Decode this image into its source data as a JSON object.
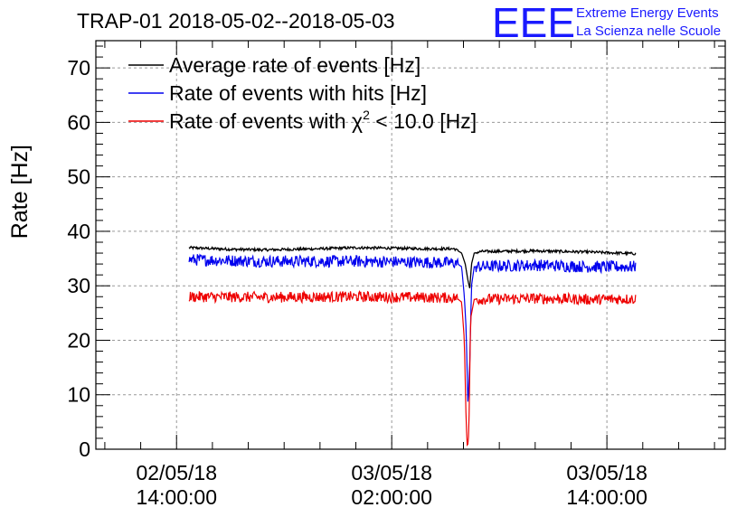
{
  "chart_data": {
    "type": "line",
    "title": "TRAP-01 2018-05-02--2018-05-03",
    "ylabel": "Rate [Hz]",
    "xlabel": "",
    "grid": true,
    "legend_position": "top-left",
    "logo": {
      "text": "EEE",
      "line1": "Extreme Energy Events",
      "line2": "La Scienza nelle Scuole",
      "color": "#1a1aff"
    },
    "ylim": [
      0,
      75
    ],
    "yticks": [
      0,
      10,
      20,
      30,
      40,
      50,
      60,
      70
    ],
    "xlim_hours_from_start": [
      -4.5,
      30.6
    ],
    "xticks": [
      {
        "hours": 0,
        "line1": "02/05/18",
        "line2": "14:00:00"
      },
      {
        "hours": 12,
        "line1": "03/05/18",
        "line2": "02:00:00"
      },
      {
        "hours": 24,
        "line1": "03/05/18",
        "line2": "14:00:00"
      }
    ],
    "series": [
      {
        "name": "Average rate of events [Hz]",
        "color": "#000000",
        "x_start": 0.7,
        "x_end": 25.6,
        "base": 36.7,
        "noise": 0.25,
        "points": [
          [
            0.7,
            37.0
          ],
          [
            3,
            36.7
          ],
          [
            5,
            36.6
          ],
          [
            8,
            36.8
          ],
          [
            10,
            37.0
          ],
          [
            12,
            36.9
          ],
          [
            14,
            36.8
          ],
          [
            15.5,
            36.8
          ],
          [
            15.9,
            36.0
          ],
          [
            16.1,
            34.0
          ],
          [
            16.25,
            31.0
          ],
          [
            16.35,
            29.5
          ],
          [
            16.45,
            34.0
          ],
          [
            16.6,
            36.0
          ],
          [
            17,
            36.3
          ],
          [
            20,
            36.4
          ],
          [
            23,
            36.2
          ],
          [
            25.6,
            35.9
          ]
        ]
      },
      {
        "name": "Rate of events with hits [Hz]",
        "color": "#0000ee",
        "x_start": 0.7,
        "x_end": 25.6,
        "base": 34.5,
        "noise": 1.1,
        "points": [
          [
            0.7,
            34.8
          ],
          [
            5,
            34.5
          ],
          [
            8.5,
            34.5
          ],
          [
            10,
            34.5
          ],
          [
            14,
            34.3
          ],
          [
            15.6,
            34.2
          ],
          [
            15.9,
            33.5
          ],
          [
            16.05,
            28.0
          ],
          [
            16.15,
            22.0
          ],
          [
            16.25,
            8.0
          ],
          [
            16.35,
            16.0
          ],
          [
            16.45,
            30.0
          ],
          [
            16.6,
            33.5
          ],
          [
            20,
            33.8
          ],
          [
            23,
            33.5
          ],
          [
            25.6,
            33.5
          ]
        ]
      },
      {
        "name": "Rate of events with χ² < 10.0 [Hz]",
        "legend_prefix": "Rate of events with ",
        "legend_chi": "χ",
        "legend_sup": "2",
        "legend_suffix": " < 10.0 [Hz]",
        "color": "#ee0000",
        "x_start": 0.7,
        "x_end": 25.6,
        "base": 27.9,
        "noise": 1.0,
        "points": [
          [
            0.7,
            28.0
          ],
          [
            5,
            27.9
          ],
          [
            10,
            28.0
          ],
          [
            15.6,
            27.8
          ],
          [
            15.9,
            27.0
          ],
          [
            16.05,
            20.0
          ],
          [
            16.15,
            5.0
          ],
          [
            16.22,
            0.0
          ],
          [
            16.3,
            3.0
          ],
          [
            16.4,
            24.0
          ],
          [
            16.6,
            27.5
          ],
          [
            20,
            27.7
          ],
          [
            23,
            27.5
          ],
          [
            25.6,
            27.6
          ]
        ]
      }
    ]
  }
}
